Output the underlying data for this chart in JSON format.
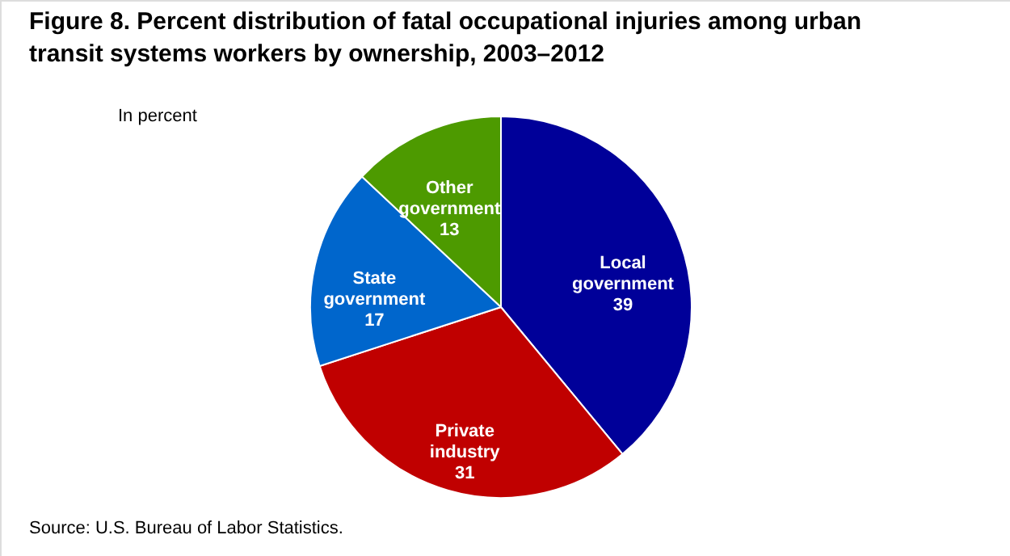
{
  "chart_data": {
    "type": "pie",
    "title": "Figure 8. Percent distribution of fatal occupational injuries among urban transit systems workers by ownership, 2003–2012",
    "subtitle": "In percent",
    "categories": [
      "Local government",
      "Private industry",
      "State government",
      "Other government"
    ],
    "values": [
      39,
      31,
      17,
      13
    ],
    "colors": [
      "#000099",
      "#c00000",
      "#0066cc",
      "#4d9a00"
    ],
    "data_labels": true,
    "annotations": [
      "Source: U.S. Bureau of Labor Statistics."
    ]
  }
}
